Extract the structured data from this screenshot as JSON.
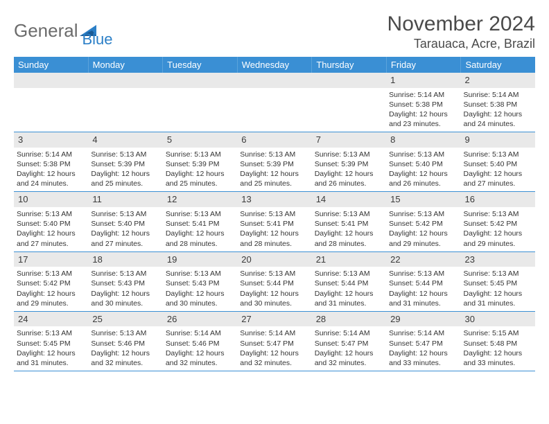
{
  "logo": {
    "text1": "General",
    "text2": "Blue",
    "color_gray": "#6b6b6b",
    "color_blue": "#2b7fc7"
  },
  "title": "November 2024",
  "location": "Tarauaca, Acre, Brazil",
  "colors": {
    "header_bg": "#3a8fd4",
    "header_text": "#ffffff",
    "daynum_bg": "#e9e9e9",
    "border": "#3a8fd4",
    "body_text": "#333333"
  },
  "day_names": [
    "Sunday",
    "Monday",
    "Tuesday",
    "Wednesday",
    "Thursday",
    "Friday",
    "Saturday"
  ],
  "weeks": [
    [
      {
        "empty": true
      },
      {
        "empty": true
      },
      {
        "empty": true
      },
      {
        "empty": true
      },
      {
        "empty": true
      },
      {
        "day": "1",
        "sunrise": "5:14 AM",
        "sunset": "5:38 PM",
        "daylight": "12 hours and 23 minutes."
      },
      {
        "day": "2",
        "sunrise": "5:14 AM",
        "sunset": "5:38 PM",
        "daylight": "12 hours and 24 minutes."
      }
    ],
    [
      {
        "day": "3",
        "sunrise": "5:14 AM",
        "sunset": "5:38 PM",
        "daylight": "12 hours and 24 minutes."
      },
      {
        "day": "4",
        "sunrise": "5:13 AM",
        "sunset": "5:39 PM",
        "daylight": "12 hours and 25 minutes."
      },
      {
        "day": "5",
        "sunrise": "5:13 AM",
        "sunset": "5:39 PM",
        "daylight": "12 hours and 25 minutes."
      },
      {
        "day": "6",
        "sunrise": "5:13 AM",
        "sunset": "5:39 PM",
        "daylight": "12 hours and 25 minutes."
      },
      {
        "day": "7",
        "sunrise": "5:13 AM",
        "sunset": "5:39 PM",
        "daylight": "12 hours and 26 minutes."
      },
      {
        "day": "8",
        "sunrise": "5:13 AM",
        "sunset": "5:40 PM",
        "daylight": "12 hours and 26 minutes."
      },
      {
        "day": "9",
        "sunrise": "5:13 AM",
        "sunset": "5:40 PM",
        "daylight": "12 hours and 27 minutes."
      }
    ],
    [
      {
        "day": "10",
        "sunrise": "5:13 AM",
        "sunset": "5:40 PM",
        "daylight": "12 hours and 27 minutes."
      },
      {
        "day": "11",
        "sunrise": "5:13 AM",
        "sunset": "5:40 PM",
        "daylight": "12 hours and 27 minutes."
      },
      {
        "day": "12",
        "sunrise": "5:13 AM",
        "sunset": "5:41 PM",
        "daylight": "12 hours and 28 minutes."
      },
      {
        "day": "13",
        "sunrise": "5:13 AM",
        "sunset": "5:41 PM",
        "daylight": "12 hours and 28 minutes."
      },
      {
        "day": "14",
        "sunrise": "5:13 AM",
        "sunset": "5:41 PM",
        "daylight": "12 hours and 28 minutes."
      },
      {
        "day": "15",
        "sunrise": "5:13 AM",
        "sunset": "5:42 PM",
        "daylight": "12 hours and 29 minutes."
      },
      {
        "day": "16",
        "sunrise": "5:13 AM",
        "sunset": "5:42 PM",
        "daylight": "12 hours and 29 minutes."
      }
    ],
    [
      {
        "day": "17",
        "sunrise": "5:13 AM",
        "sunset": "5:42 PM",
        "daylight": "12 hours and 29 minutes."
      },
      {
        "day": "18",
        "sunrise": "5:13 AM",
        "sunset": "5:43 PM",
        "daylight": "12 hours and 30 minutes."
      },
      {
        "day": "19",
        "sunrise": "5:13 AM",
        "sunset": "5:43 PM",
        "daylight": "12 hours and 30 minutes."
      },
      {
        "day": "20",
        "sunrise": "5:13 AM",
        "sunset": "5:44 PM",
        "daylight": "12 hours and 30 minutes."
      },
      {
        "day": "21",
        "sunrise": "5:13 AM",
        "sunset": "5:44 PM",
        "daylight": "12 hours and 31 minutes."
      },
      {
        "day": "22",
        "sunrise": "5:13 AM",
        "sunset": "5:44 PM",
        "daylight": "12 hours and 31 minutes."
      },
      {
        "day": "23",
        "sunrise": "5:13 AM",
        "sunset": "5:45 PM",
        "daylight": "12 hours and 31 minutes."
      }
    ],
    [
      {
        "day": "24",
        "sunrise": "5:13 AM",
        "sunset": "5:45 PM",
        "daylight": "12 hours and 31 minutes."
      },
      {
        "day": "25",
        "sunrise": "5:13 AM",
        "sunset": "5:46 PM",
        "daylight": "12 hours and 32 minutes."
      },
      {
        "day": "26",
        "sunrise": "5:14 AM",
        "sunset": "5:46 PM",
        "daylight": "12 hours and 32 minutes."
      },
      {
        "day": "27",
        "sunrise": "5:14 AM",
        "sunset": "5:47 PM",
        "daylight": "12 hours and 32 minutes."
      },
      {
        "day": "28",
        "sunrise": "5:14 AM",
        "sunset": "5:47 PM",
        "daylight": "12 hours and 32 minutes."
      },
      {
        "day": "29",
        "sunrise": "5:14 AM",
        "sunset": "5:47 PM",
        "daylight": "12 hours and 33 minutes."
      },
      {
        "day": "30",
        "sunrise": "5:15 AM",
        "sunset": "5:48 PM",
        "daylight": "12 hours and 33 minutes."
      }
    ]
  ],
  "labels": {
    "sunrise": "Sunrise:",
    "sunset": "Sunset:",
    "daylight": "Daylight:"
  }
}
